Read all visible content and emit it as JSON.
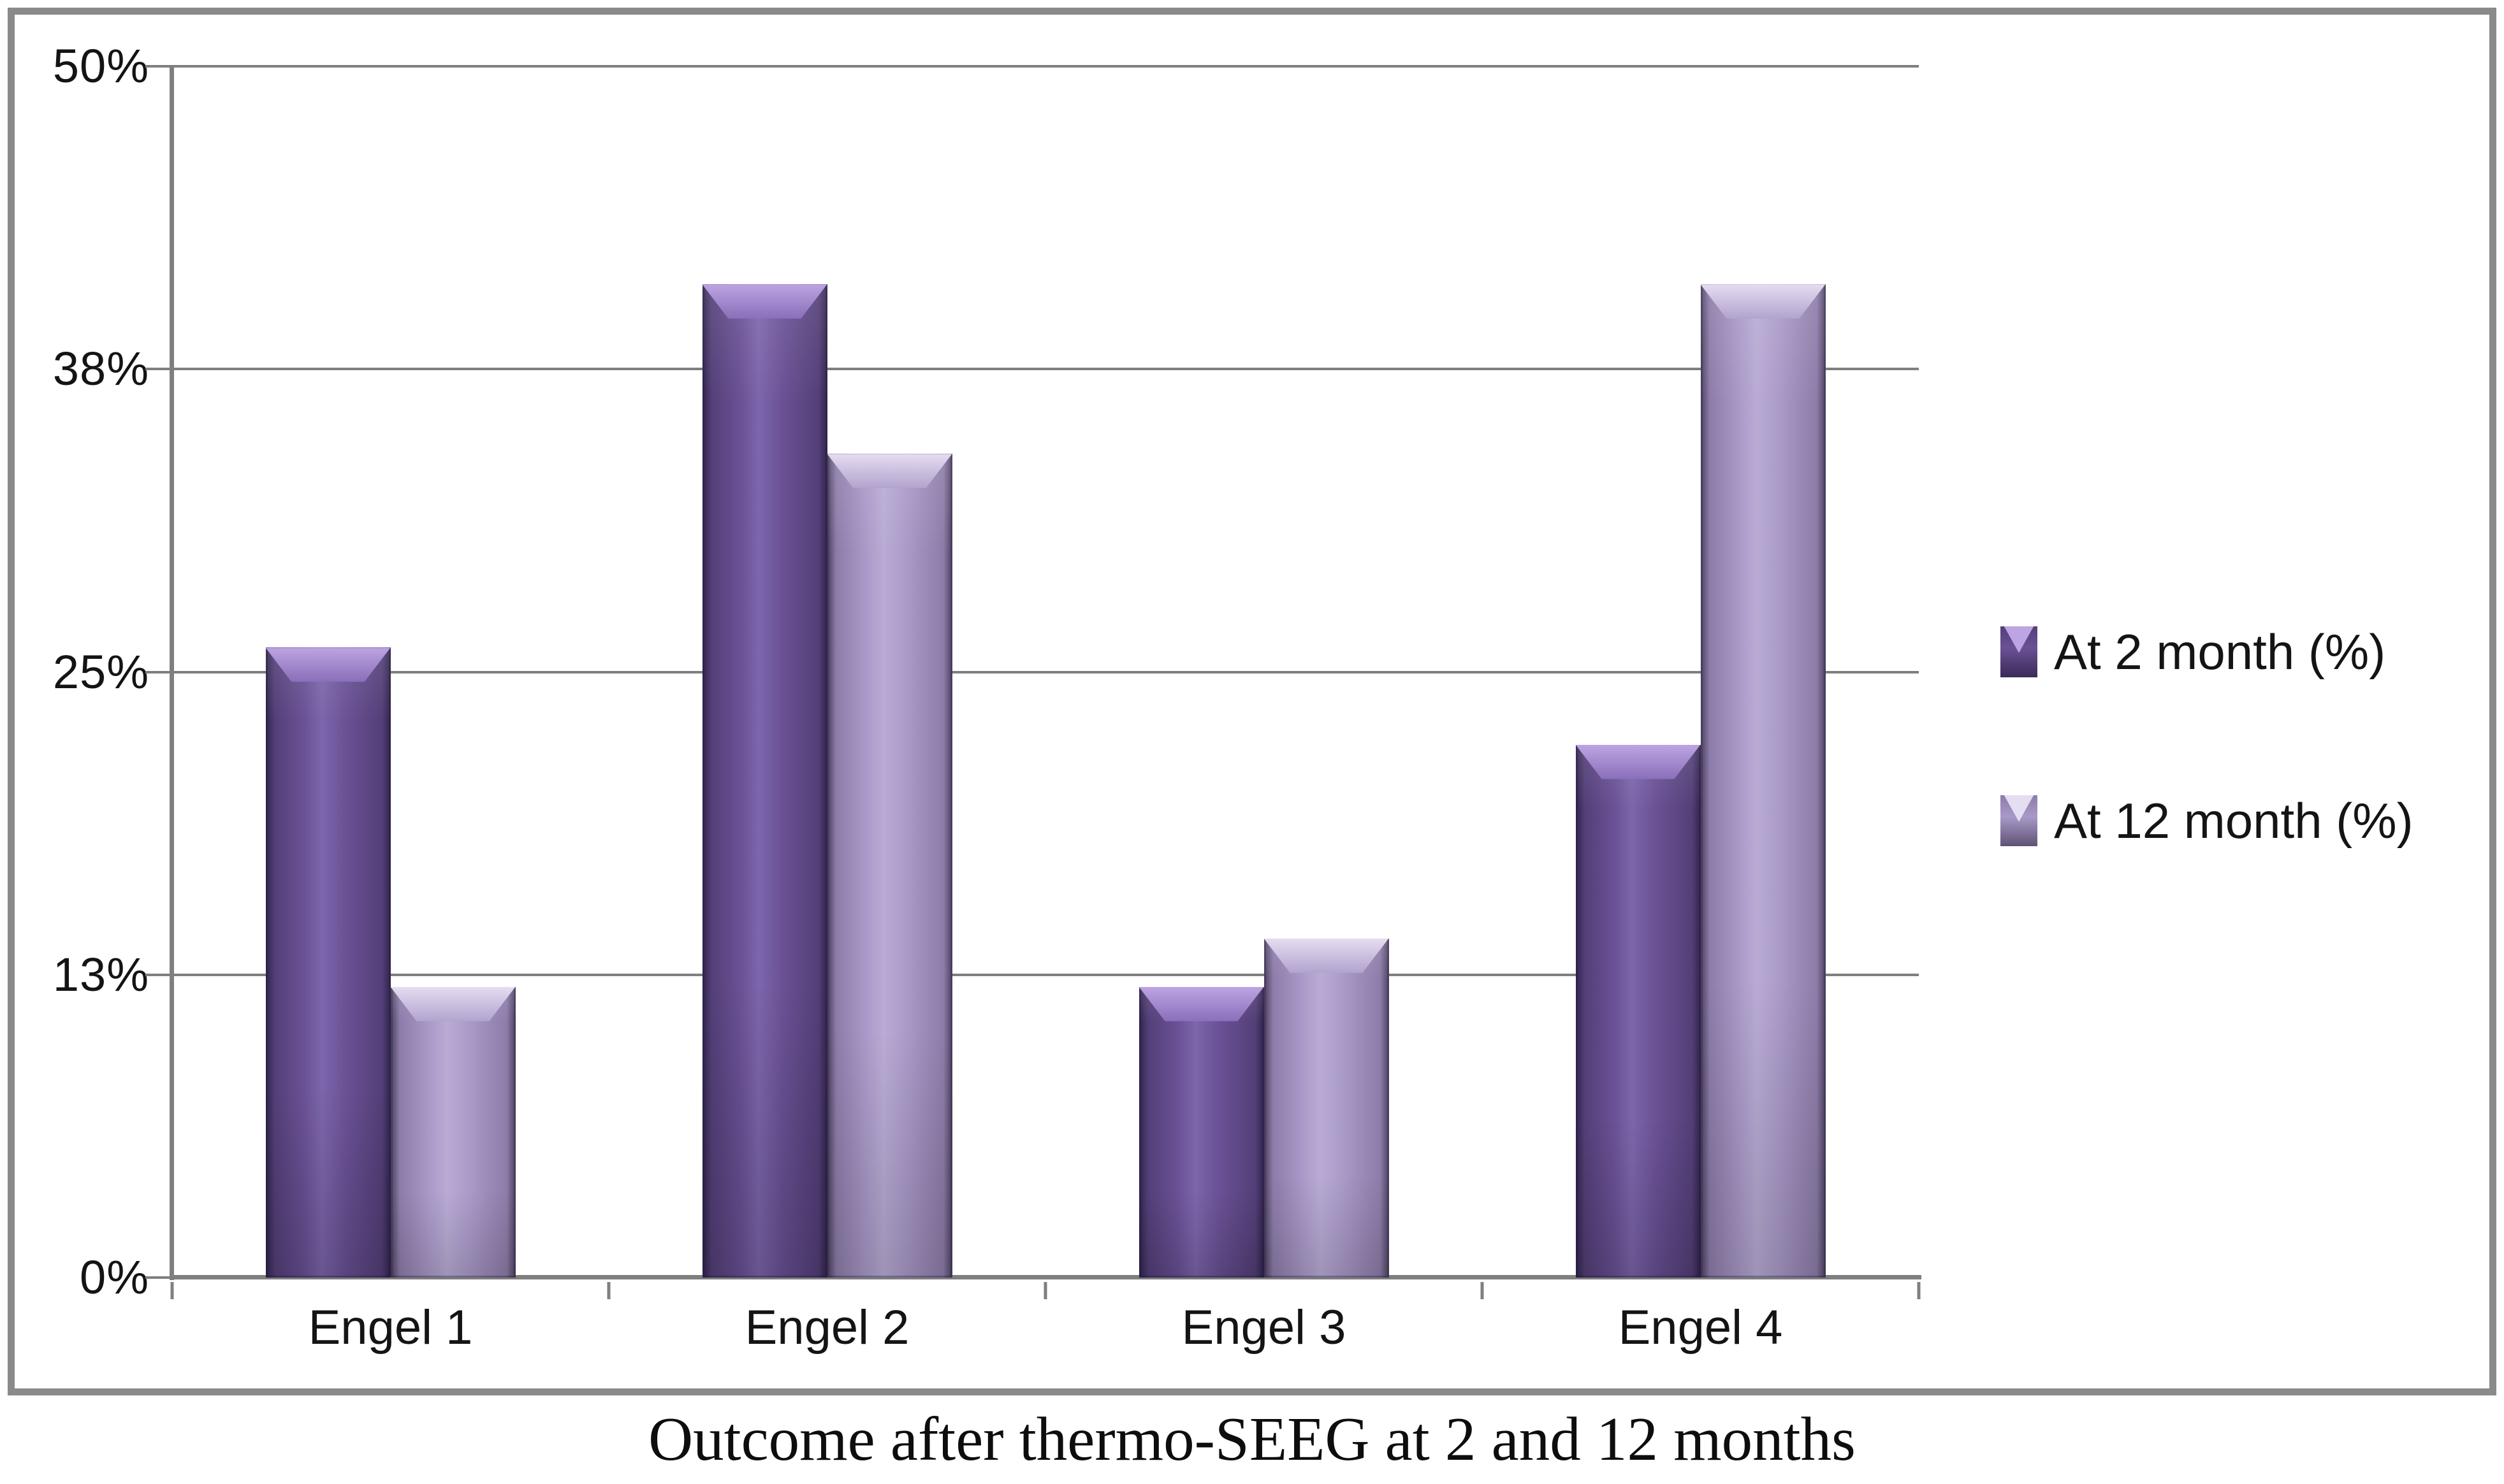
{
  "figure": {
    "caption": "Outcome after thermo-SEEG at 2 and 12 months"
  },
  "chart_data": {
    "type": "bar",
    "categories": [
      "Engel 1",
      "Engel 2",
      "Engel 3",
      "Engel 4"
    ],
    "series": [
      {
        "name": "At 2 month (%)",
        "values": [
          26,
          41,
          12,
          22
        ],
        "color": "#6a5195",
        "palette": {
          "base": "#6a5195",
          "light": "#7c66ac",
          "edge": "#533f78",
          "outline": "#3a2b58",
          "bevelhi": "#bda4e2",
          "bevello": "#8a6fba"
        }
      },
      {
        "name": "At 12 month (%)",
        "values": [
          12,
          34,
          14,
          41
        ],
        "color": "#a999c8",
        "palette": {
          "base": "#a999c8",
          "light": "#b9abd4",
          "edge": "#8d7ca9",
          "outline": "#5e5274",
          "bevelhi": "#e5ddf1",
          "bevello": "#b2a3ce"
        }
      }
    ],
    "title": "Outcome after thermo-SEEG at 2 and 12 months",
    "xlabel": "",
    "ylabel": "",
    "y_ticks": [
      "0%",
      "13%",
      "25%",
      "38%",
      "50%"
    ],
    "ylim": [
      0,
      50
    ],
    "grid": true,
    "legend_position": "right",
    "gridline_color": "#7f7f7f",
    "border_color": "#8a8a8a",
    "text_color": "#141414"
  }
}
